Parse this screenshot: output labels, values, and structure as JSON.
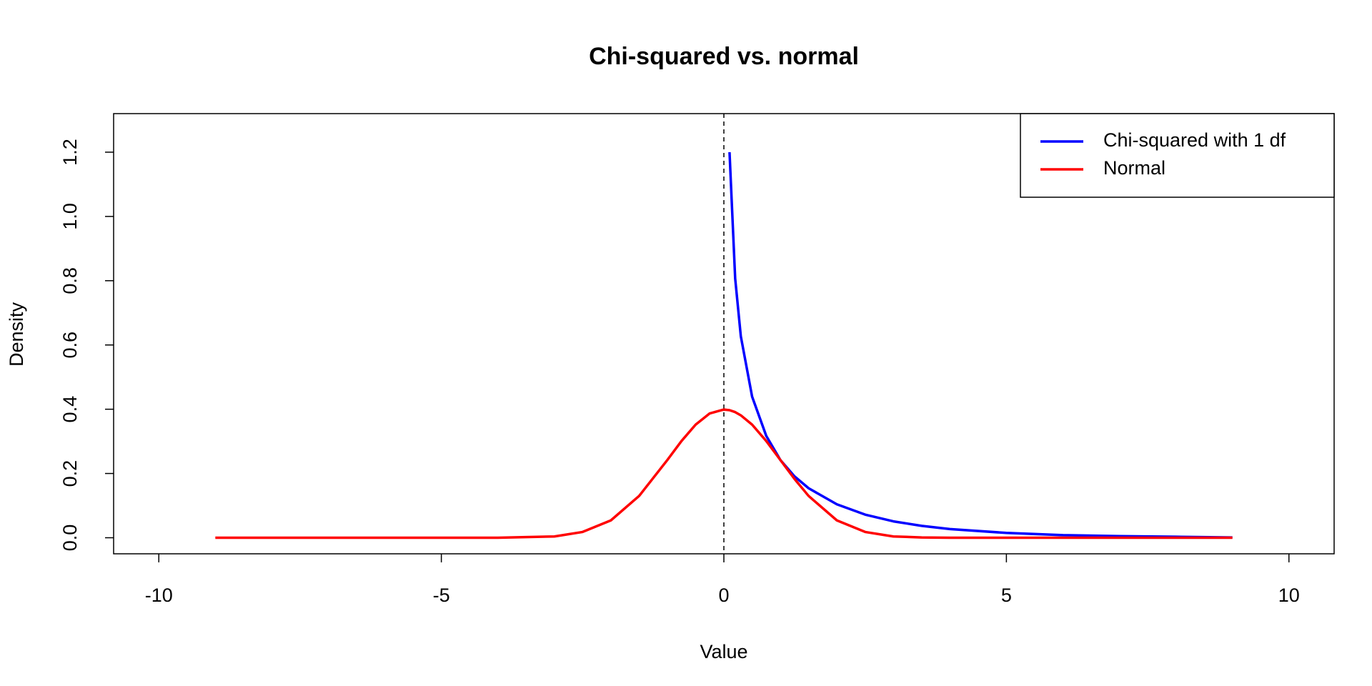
{
  "chart_data": {
    "type": "line",
    "title": "Chi-squared vs. normal",
    "x_label": "Value",
    "y_label": "Density",
    "x": [
      -9,
      -8,
      -7,
      -6,
      -5,
      -4,
      -3,
      -2.5,
      -2,
      -1.5,
      -1,
      -0.75,
      -0.5,
      -0.25,
      0,
      0.1,
      0.2,
      0.3,
      0.5,
      0.75,
      1,
      1.25,
      1.5,
      2,
      2.5,
      3,
      3.5,
      4,
      5,
      6,
      7,
      8,
      9
    ],
    "series": [
      {
        "name": "Chi-squared with 1 df",
        "color": "#0000ff",
        "values": [
          null,
          null,
          null,
          null,
          null,
          null,
          null,
          null,
          null,
          null,
          null,
          null,
          null,
          null,
          null,
          1.2,
          0.807,
          0.627,
          0.439,
          0.317,
          0.242,
          0.191,
          0.154,
          0.104,
          0.072,
          0.051,
          0.037,
          0.027,
          0.015,
          0.008,
          0.005,
          0.003,
          0.001
        ]
      },
      {
        "name": "Normal",
        "color": "#ff0000",
        "values": [
          0,
          0,
          0,
          0,
          0,
          0,
          0.004,
          0.018,
          0.054,
          0.13,
          0.242,
          0.301,
          0.352,
          0.387,
          0.399,
          0.397,
          0.391,
          0.381,
          0.352,
          0.301,
          0.242,
          0.183,
          0.13,
          0.054,
          0.018,
          0.004,
          0.001,
          0,
          0,
          0,
          0,
          0,
          0
        ]
      }
    ],
    "vline": 0,
    "xlim": [
      -10.8,
      10.8
    ],
    "xticks": [
      -10,
      -5,
      0,
      5,
      10
    ],
    "ylim": [
      -0.05,
      1.32
    ],
    "yticks": [
      {
        "value": 0,
        "label": "0.0"
      },
      0.2,
      0.4,
      0.6,
      0.8,
      {
        "value": 1,
        "label": "1.0"
      },
      1.2
    ],
    "legend": "topright",
    "grid": false
  }
}
